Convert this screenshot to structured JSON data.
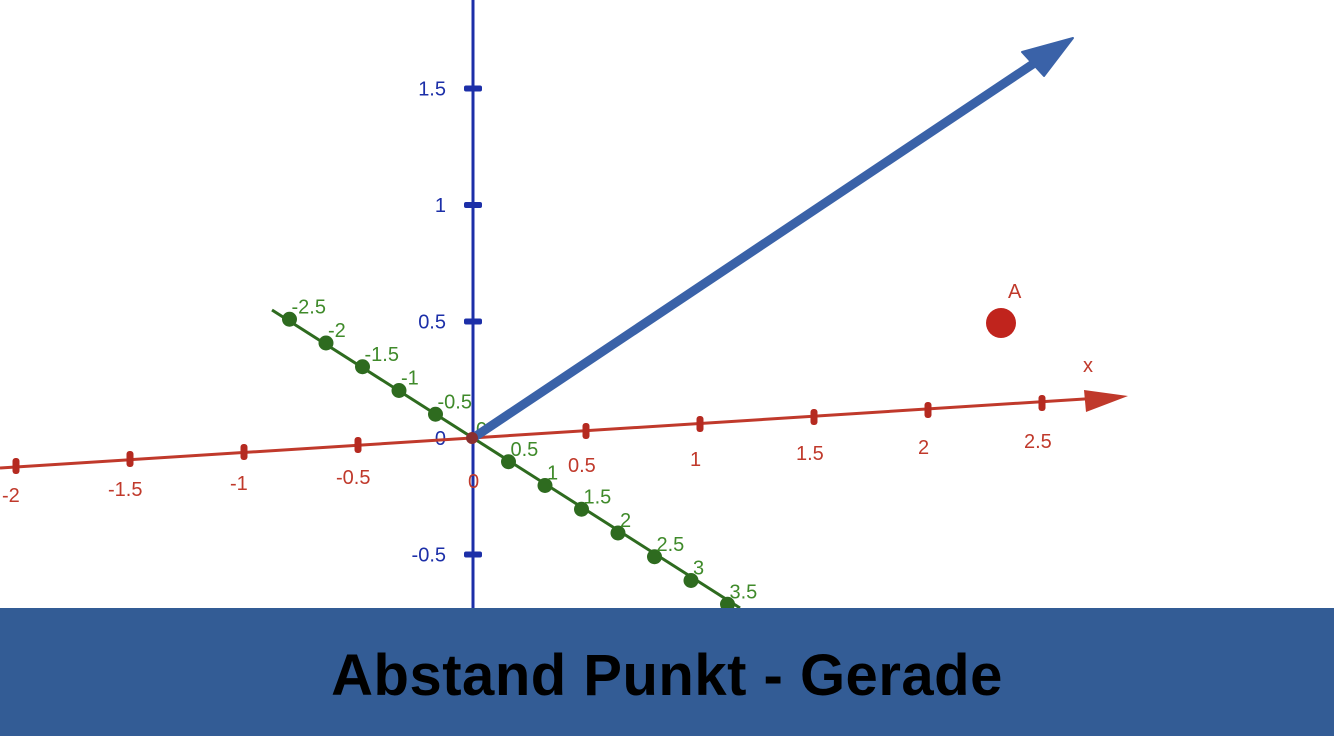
{
  "scene": {
    "x_axis": {
      "name": "x",
      "ticks": [
        "-2",
        "-1.5",
        "-1",
        "-0.5",
        "0",
        "0.5",
        "1",
        "1.5",
        "2",
        "2.5"
      ],
      "color": "#c0392b"
    },
    "y_axis": {
      "ticks": [
        "-0.5",
        "0",
        "0.5",
        "1",
        "1.5"
      ],
      "color": "#1c2fa8"
    },
    "z_axis": {
      "ticks": [
        "-2.5",
        "-2",
        "-1.5",
        "-1",
        "-0.5",
        "0",
        "0.5",
        "1",
        "1.5",
        "2",
        "2.5",
        "3",
        "3.5"
      ],
      "color": "#3f8a2a"
    },
    "point": {
      "label": "A",
      "color": "#c0392b"
    },
    "vector_color": "#3a62a8"
  },
  "banner": {
    "title": "Abstand Punkt - Gerade",
    "background": "#335c95"
  }
}
